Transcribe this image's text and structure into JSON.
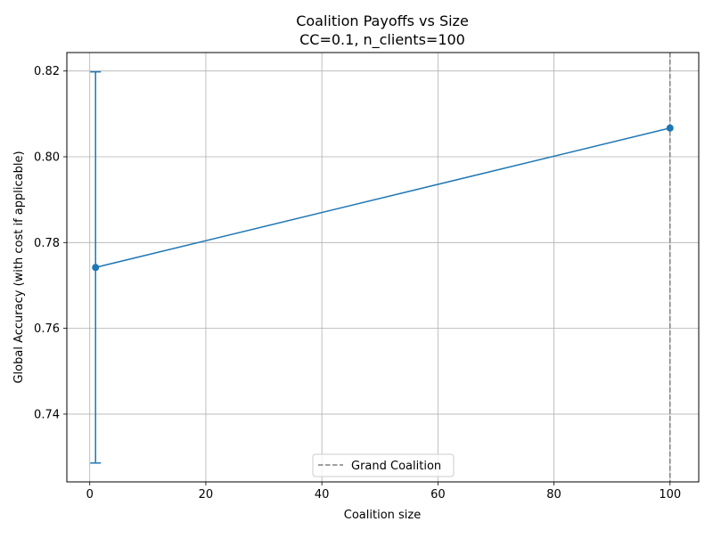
{
  "chart_data": {
    "type": "line",
    "title": "Coalition Payoffs vs Size",
    "subtitle": "CC=0.1, n_clients=100",
    "xlabel": "Coalition size",
    "ylabel": "Global Accuracy (with cost if applicable)",
    "xlim": [
      -3.95,
      104.95
    ],
    "ylim": [
      0.7242,
      0.8243
    ],
    "xticks": [
      0,
      20,
      40,
      60,
      80,
      100
    ],
    "yticks": [
      0.74,
      0.76,
      0.78,
      0.8,
      0.82
    ],
    "ytick_labels": [
      "0.74",
      "0.76",
      "0.78",
      "0.80",
      "0.82"
    ],
    "grid": true,
    "series": [
      {
        "color": "#1f77b4",
        "x": [
          1,
          100
        ],
        "y": [
          0.7742,
          0.8067
        ],
        "error": [
          0.0456,
          0.0
        ]
      }
    ],
    "reference_lines": [
      {
        "orientation": "vertical",
        "x": 100,
        "color": "#808080",
        "style": "dashed",
        "label": "Grand Coalition"
      }
    ],
    "legend": {
      "placement": "bottom-center",
      "entries": [
        "Grand Coalition"
      ]
    }
  }
}
